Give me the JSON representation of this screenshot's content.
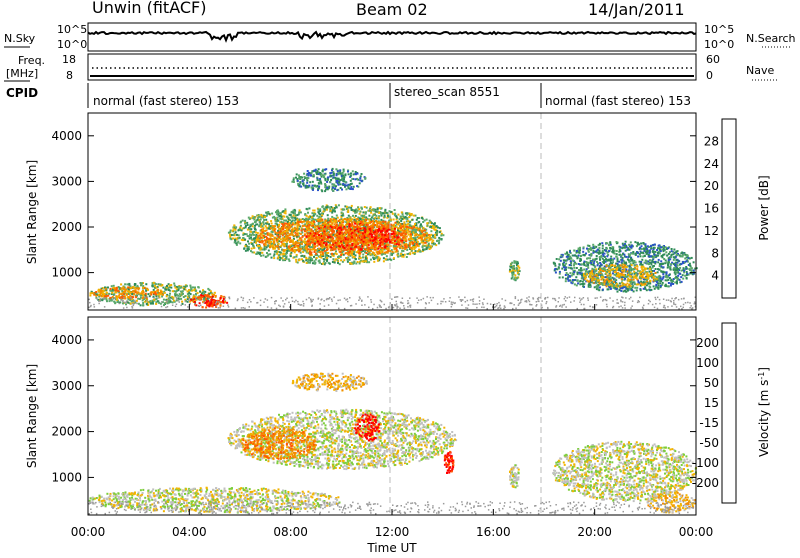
{
  "header": {
    "site": "Unwin (fitACF)",
    "beam": "Beam 02",
    "date": "14/Jan/2011"
  },
  "strip_labels": {
    "nsky": "N.Sky",
    "nsearch": "N.Search",
    "freq_line1": "Freq.",
    "freq_line2": "[MHz]",
    "nave": "Nave",
    "cpid": "CPID",
    "noise_left_ticks": [
      "10^5",
      "10^0"
    ],
    "noise_right_ticks": [
      "10^5",
      "10^0"
    ],
    "freq_left_ticks": [
      "18",
      "8"
    ],
    "freq_right_ticks": [
      "60",
      "0"
    ]
  },
  "cpid_segments": [
    {
      "label": "normal (fast stereo) 153"
    },
    {
      "label": "stereo_scan 8551"
    },
    {
      "label": "normal (fast stereo) 153"
    }
  ],
  "x_axis": {
    "label": "Time UT",
    "ticks": [
      "00:00",
      "04:00",
      "08:00",
      "12:00",
      "16:00",
      "20:00",
      "00:00"
    ]
  },
  "chart_data": [
    {
      "type": "heatmap",
      "title": "",
      "xlabel": "",
      "ylabel": "Slant Range [km]",
      "x_range_hours": [
        0,
        24
      ],
      "ylim": [
        180,
        4500
      ],
      "y_ticks": [
        "1000",
        "2000",
        "3000",
        "4000"
      ],
      "colorbar": {
        "label": "Power [dB]",
        "ticks": [
          "4",
          "8",
          "12",
          "16",
          "20",
          "24",
          "28"
        ],
        "colors": [
          "#0000ff",
          "#2a52c8",
          "#2e8b57",
          "#5aa86a",
          "#f2b400",
          "#f28c00",
          "#ff5a00",
          "#ff0000"
        ]
      },
      "regions": [
        {
          "t0": 0.0,
          "t1": 5.0,
          "r0": 300,
          "r1": 800,
          "level": 3
        },
        {
          "t0": 0.1,
          "t1": 3.0,
          "r0": 450,
          "r1": 700,
          "level": 5
        },
        {
          "t0": 4.0,
          "t1": 5.5,
          "r0": 250,
          "r1": 550,
          "level": 6
        },
        {
          "t0": 4.6,
          "t1": 5.1,
          "r0": 280,
          "r1": 420,
          "level": 7
        },
        {
          "t0": 5.5,
          "t1": 14.0,
          "r0": 1200,
          "r1": 2500,
          "level": 3
        },
        {
          "t0": 6.5,
          "t1": 13.5,
          "r0": 1400,
          "r1": 2200,
          "level": 5
        },
        {
          "t0": 8.5,
          "t1": 12.5,
          "r0": 1500,
          "r1": 2100,
          "level": 6
        },
        {
          "t0": 11.0,
          "t1": 12.0,
          "r0": 1700,
          "r1": 2000,
          "level": 7
        },
        {
          "t0": 8.0,
          "t1": 11.0,
          "r0": 2800,
          "r1": 3300,
          "level": 2
        },
        {
          "t0": 16.6,
          "t1": 17.0,
          "r0": 850,
          "r1": 1300,
          "level": 3
        },
        {
          "t0": 18.3,
          "t1": 24.0,
          "r0": 600,
          "r1": 1700,
          "level": 2
        },
        {
          "t0": 19.5,
          "t1": 22.5,
          "r0": 700,
          "r1": 1200,
          "level": 4
        }
      ]
    },
    {
      "type": "heatmap",
      "title": "",
      "xlabel": "Time UT",
      "ylabel": "Slant Range [km]",
      "x_range_hours": [
        0,
        24
      ],
      "ylim": [
        180,
        4500
      ],
      "y_ticks": [
        "1000",
        "2000",
        "3000",
        "4000"
      ],
      "colorbar": {
        "label": "Velocity [m s^-1]",
        "ticks": [
          "200",
          "100",
          "50",
          "15",
          "-15",
          "-50",
          "-100",
          "-200"
        ],
        "colors": [
          "#1f3fbf",
          "#2e8b57",
          "#3a9a3a",
          "#7ccd3a",
          "#c0c0c0",
          "#f2b400",
          "#f28c00",
          "#ff5a00",
          "#ff0000"
        ]
      },
      "regions": [
        {
          "t0": 0.0,
          "t1": 10.0,
          "r0": 250,
          "r1": 800,
          "level": 4
        },
        {
          "t0": 5.5,
          "t1": 14.5,
          "r0": 1200,
          "r1": 2500,
          "level": 4
        },
        {
          "t0": 6.0,
          "t1": 9.0,
          "r0": 1400,
          "r1": 2100,
          "level": 6
        },
        {
          "t0": 10.5,
          "t1": 11.5,
          "r0": 1800,
          "r1": 2400,
          "level": 8
        },
        {
          "t0": 14.0,
          "t1": 14.4,
          "r0": 1100,
          "r1": 1600,
          "level": 8
        },
        {
          "t0": 8.0,
          "t1": 11.0,
          "r0": 2900,
          "r1": 3300,
          "level": 5
        },
        {
          "t0": 16.6,
          "t1": 17.0,
          "r0": 800,
          "r1": 1300,
          "level": 4
        },
        {
          "t0": 18.3,
          "t1": 24.0,
          "r0": 500,
          "r1": 1800,
          "level": 4
        },
        {
          "t0": 22.0,
          "t1": 24.0,
          "r0": 250,
          "r1": 700,
          "level": 5
        }
      ]
    }
  ]
}
